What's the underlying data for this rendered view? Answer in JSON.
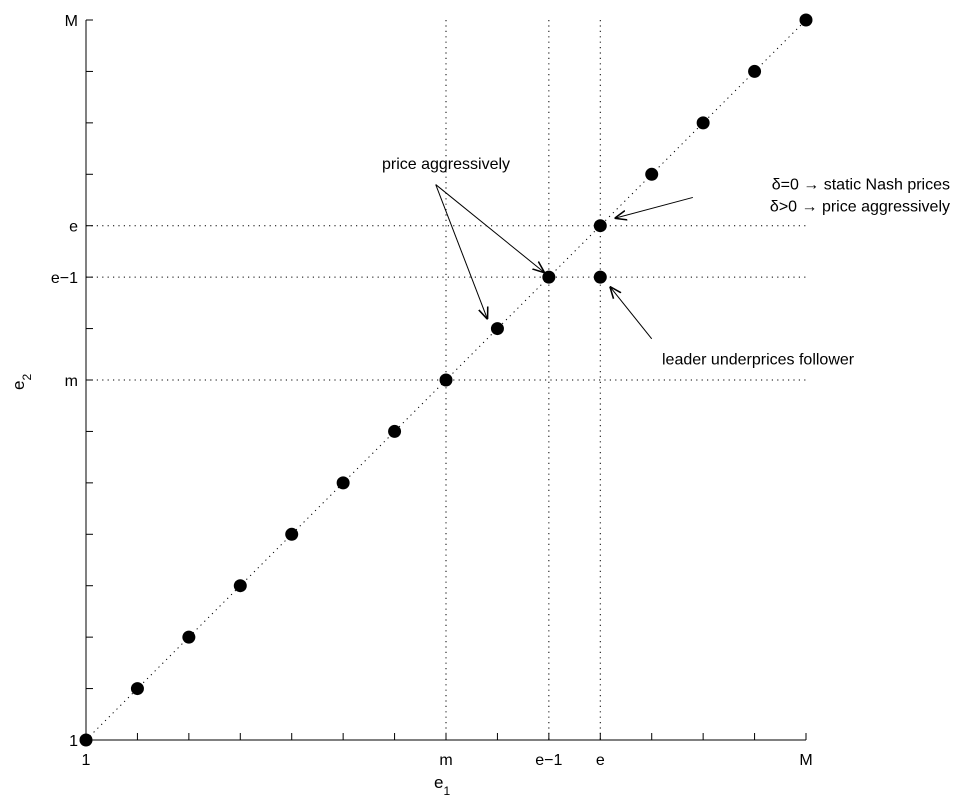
{
  "chart_data": {
    "type": "scatter",
    "title": "",
    "xlabel": {
      "main": "e",
      "sub": "1"
    },
    "ylabel": {
      "main": "e",
      "sub": "2"
    },
    "xlim": [
      1,
      15
    ],
    "ylim": [
      1,
      15
    ],
    "grid": false,
    "x_ticks": [
      {
        "value": 1,
        "label": "1"
      },
      {
        "value": 8,
        "label": "m"
      },
      {
        "value": 10,
        "label": "e−1"
      },
      {
        "value": 11,
        "label": "e"
      },
      {
        "value": 15,
        "label": "M"
      }
    ],
    "y_ticks": [
      {
        "value": 1,
        "label": "1"
      },
      {
        "value": 8,
        "label": "m"
      },
      {
        "value": 10,
        "label": "e−1"
      },
      {
        "value": 11,
        "label": "e"
      },
      {
        "value": 15,
        "label": "M"
      }
    ],
    "minor_ticks": [
      2,
      3,
      4,
      5,
      6,
      7,
      9,
      12,
      13,
      14
    ],
    "reference_lines": {
      "vertical": [
        8,
        10,
        11
      ],
      "horizontal": [
        8,
        10,
        11
      ],
      "diagonal": true
    },
    "points": [
      {
        "x": 1,
        "y": 1
      },
      {
        "x": 2,
        "y": 2
      },
      {
        "x": 3,
        "y": 3
      },
      {
        "x": 4,
        "y": 4
      },
      {
        "x": 5,
        "y": 5
      },
      {
        "x": 6,
        "y": 6
      },
      {
        "x": 7,
        "y": 7
      },
      {
        "x": 8,
        "y": 8
      },
      {
        "x": 9,
        "y": 9
      },
      {
        "x": 10,
        "y": 10
      },
      {
        "x": 11,
        "y": 11
      },
      {
        "x": 11,
        "y": 10
      },
      {
        "x": 12,
        "y": 12
      },
      {
        "x": 13,
        "y": 13
      },
      {
        "x": 14,
        "y": 14
      },
      {
        "x": 15,
        "y": 15
      }
    ],
    "annotations": [
      {
        "lines": [
          "price aggressively"
        ],
        "anchor": "middle",
        "text_at": {
          "x": 8,
          "y": 12.1
        },
        "arrows": [
          {
            "from": {
              "x": 7.8,
              "y": 11.8
            },
            "to": {
              "x": 9.9,
              "y": 10.1
            }
          },
          {
            "from": {
              "x": 7.8,
              "y": 11.8
            },
            "to": {
              "x": 8.8,
              "y": 9.2
            }
          }
        ]
      },
      {
        "lines": [
          "δ=0 → static Nash prices",
          "δ>0 → price aggressively"
        ],
        "anchor": "end",
        "text_at": {
          "x": 17.8,
          "y": 11.7
        },
        "arrows": [
          {
            "from": {
              "x": 12.8,
              "y": 11.55
            },
            "to": {
              "x": 11.3,
              "y": 11.15
            }
          }
        ]
      },
      {
        "lines": [
          "leader underprices follower"
        ],
        "anchor": "start",
        "text_at": {
          "x": 12.2,
          "y": 8.3
        },
        "arrows": [
          {
            "from": {
              "x": 12.0,
              "y": 8.8
            },
            "to": {
              "x": 11.2,
              "y": 9.8
            }
          }
        ]
      }
    ]
  }
}
